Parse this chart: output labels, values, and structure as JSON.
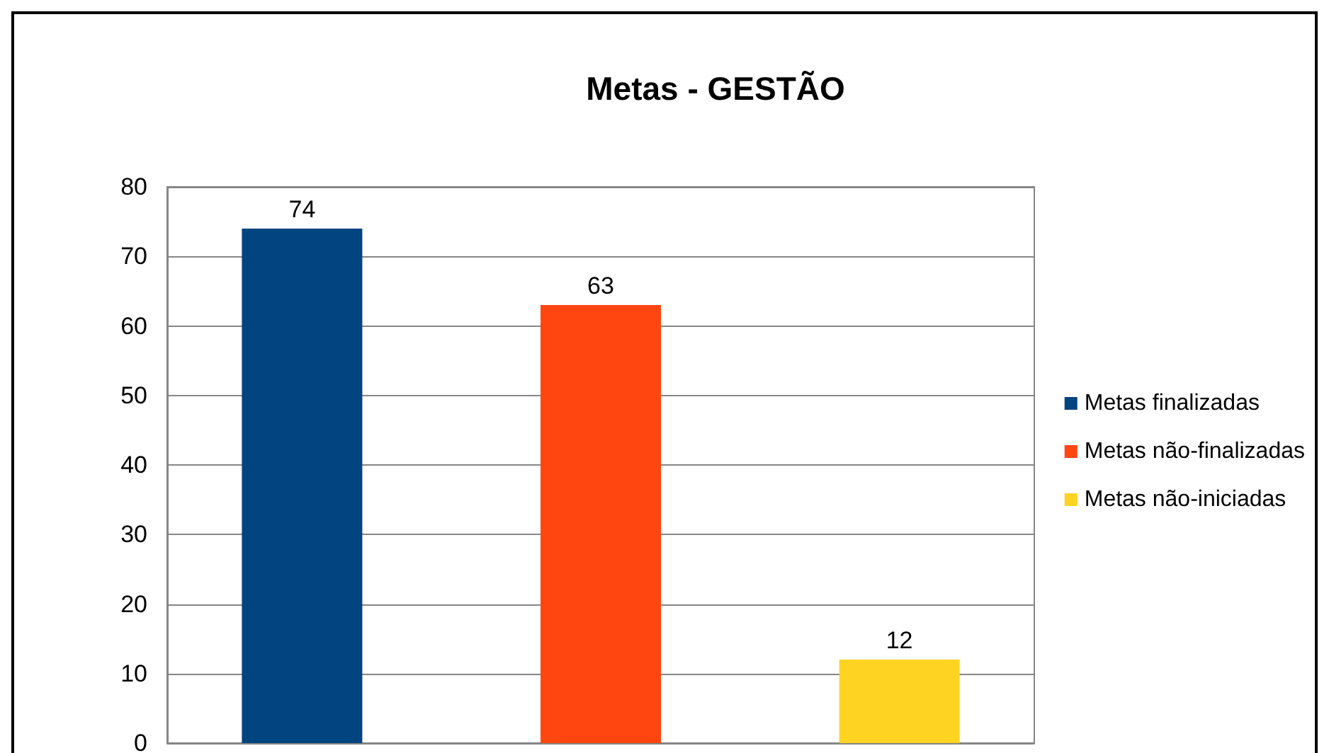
{
  "chart_data": {
    "type": "bar",
    "title": "Metas - GESTÃO",
    "categories": [
      null
    ],
    "series": [
      {
        "name": "Metas finalizadas",
        "color": "#02447f",
        "values": [
          74
        ]
      },
      {
        "name": "Metas não-finalizadas",
        "color": "#ff4611",
        "values": [
          63
        ]
      },
      {
        "name": "Metas não-iniciadas",
        "color": "#ffd322",
        "values": [
          12
        ]
      }
    ],
    "ylim": [
      0,
      80
    ],
    "yticks": [
      0,
      10,
      20,
      30,
      40,
      50,
      60,
      70,
      80
    ],
    "grid": "y",
    "legend": "right",
    "data_labels": true
  }
}
